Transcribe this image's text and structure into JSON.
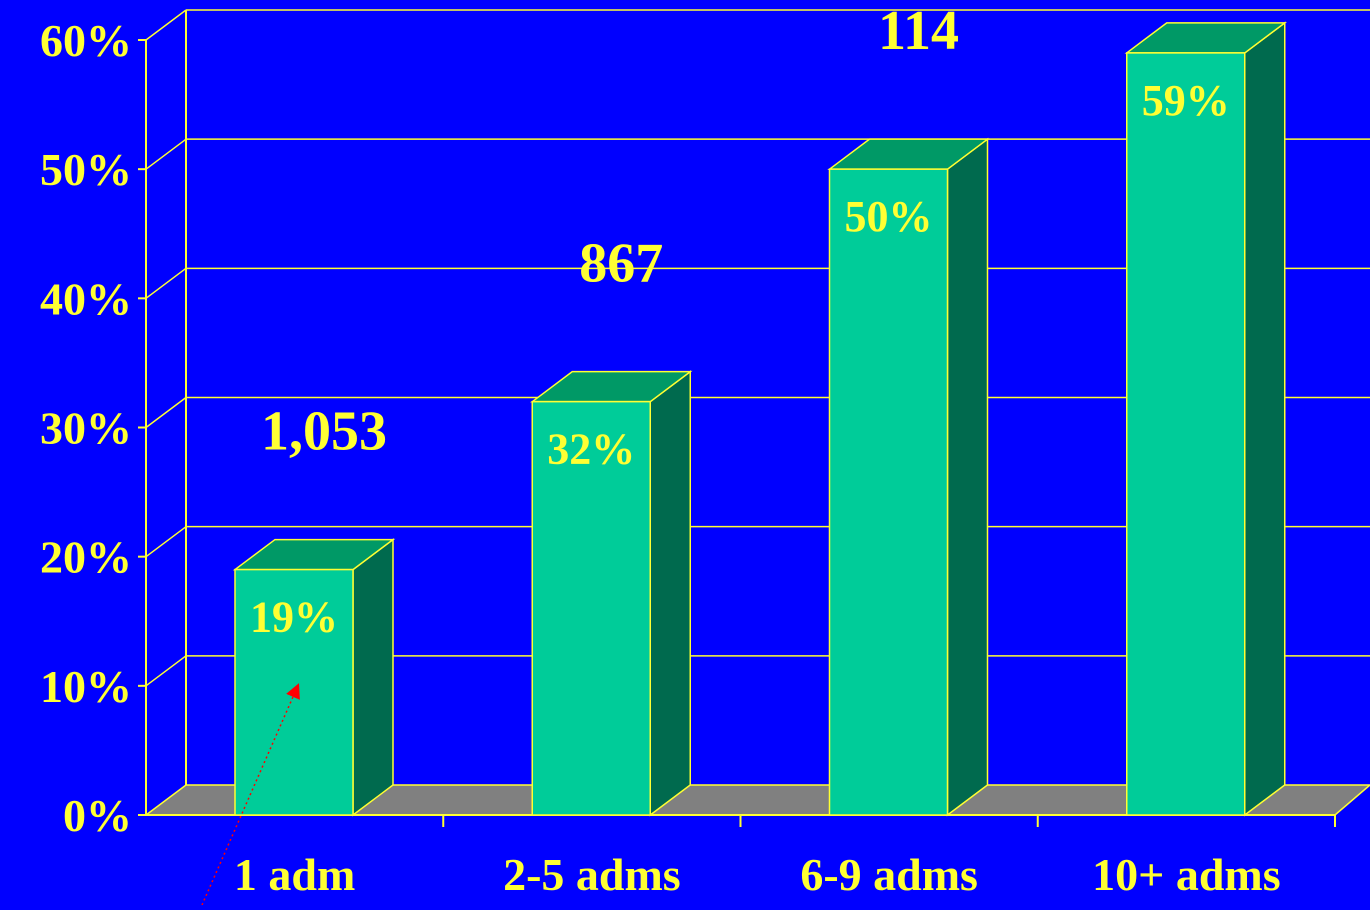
{
  "colors": {
    "background": "#0000FF",
    "axis": "#FFFF33",
    "text": "#FFFF33",
    "bar_front": "#00CC99",
    "bar_top": "#009966",
    "bar_side": "#006A4E",
    "floor": "#808080",
    "arrow": "#FF0000"
  },
  "chart_data": {
    "type": "bar",
    "title": "",
    "xlabel": "",
    "ylabel": "",
    "categories": [
      "1 adm",
      "2-5 adms",
      "6-9 adms",
      "10+ adms"
    ],
    "values": [
      19,
      32,
      50,
      59
    ],
    "value_labels": [
      "19%",
      "32%",
      "50%",
      "59%"
    ],
    "count_labels": [
      "1,053",
      "867",
      "114",
      ""
    ],
    "ylim": [
      0,
      60
    ],
    "yticks": [
      0,
      10,
      20,
      30,
      40,
      50,
      60
    ],
    "ytick_labels": [
      "0%",
      "10%",
      "20%",
      "30%",
      "40%",
      "50%",
      "60%"
    ],
    "grid": true,
    "style": "3d-bar"
  }
}
